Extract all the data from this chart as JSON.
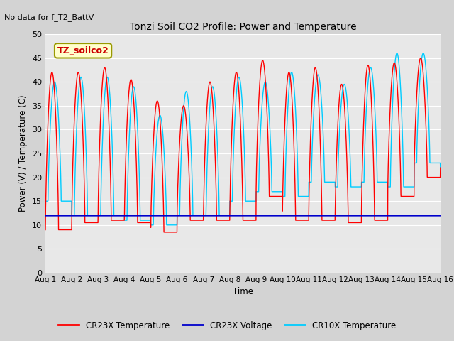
{
  "title": "Tonzi Soil CO2 Profile: Power and Temperature",
  "subtitle": "No data for f_T2_BattV",
  "ylabel": "Power (V) / Temperature (C)",
  "xlabel": "Time",
  "ylim": [
    0,
    50
  ],
  "yticks": [
    0,
    5,
    10,
    15,
    20,
    25,
    30,
    35,
    40,
    45,
    50
  ],
  "xtick_labels": [
    "Aug 1",
    "Aug 2",
    "Aug 3",
    "Aug 4",
    "Aug 5",
    "Aug 6",
    "Aug 7",
    "Aug 8",
    "Aug 9",
    "Aug 10",
    "Aug 11",
    "Aug 12",
    "Aug 13",
    "Aug 14",
    "Aug 15",
    "Aug 16"
  ],
  "legend_entries": [
    "CR23X Temperature",
    "CR23X Voltage",
    "CR10X Temperature"
  ],
  "legend_colors": [
    "#ff0000",
    "#0000cc",
    "#00ccff"
  ],
  "fig_bg_color": "#d3d3d3",
  "plot_bg_color": "#e8e8e8",
  "grid_color": "#ffffff",
  "annotation_label": "TZ_soilco2",
  "annotation_bg": "#ffffcc",
  "annotation_border": "#999900",
  "voltage_level": 12.0,
  "cr23x_peaks": [
    42,
    42,
    43,
    40.5,
    36,
    35,
    40,
    42,
    44.5,
    42,
    43,
    39.5,
    43.5,
    44,
    45,
    47
  ],
  "cr23x_troughs": [
    9,
    10.5,
    11,
    10.5,
    8.5,
    11,
    11,
    11,
    16,
    11,
    11,
    10.5,
    11,
    16,
    20,
    22
  ],
  "cr10x_peaks": [
    40,
    41,
    41,
    39,
    33,
    38,
    39,
    41,
    40,
    42,
    41.5,
    39.5,
    43,
    46,
    46,
    45
  ],
  "cr10x_troughs": [
    15,
    12,
    12,
    11,
    10,
    12,
    12,
    15,
    17,
    16,
    19,
    18,
    19,
    18,
    23,
    22
  ]
}
